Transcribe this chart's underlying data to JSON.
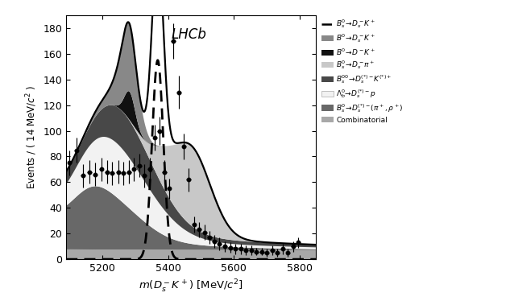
{
  "title": "LHCb",
  "xlabel": "$m(D_s^- K^+)$ [MeV/$c^2$]",
  "ylabel": "Events / ( 14 MeV/$c^2$ )",
  "xlim": [
    5090,
    5850
  ],
  "ylim": [
    0,
    190
  ],
  "yticks": [
    0,
    20,
    40,
    60,
    80,
    100,
    120,
    140,
    160,
    180
  ],
  "xticks": [
    5200,
    5400,
    5600,
    5800
  ],
  "data_x": [
    5100,
    5120,
    5140,
    5160,
    5178,
    5196,
    5214,
    5230,
    5248,
    5264,
    5280,
    5296,
    5312,
    5328,
    5344,
    5360,
    5374,
    5388,
    5402,
    5416,
    5432,
    5448,
    5462,
    5478,
    5494,
    5510,
    5526,
    5540,
    5556,
    5572,
    5588,
    5604,
    5620,
    5636,
    5652,
    5668,
    5684,
    5700,
    5716,
    5732,
    5748,
    5764,
    5780,
    5796
  ],
  "data_y": [
    75,
    85,
    65,
    68,
    66,
    70,
    68,
    67,
    68,
    67,
    68,
    70,
    73,
    65,
    70,
    95,
    100,
    68,
    55,
    170,
    130,
    88,
    62,
    27,
    23,
    21,
    17,
    14,
    12,
    10,
    9,
    8,
    8,
    7,
    7,
    6,
    6,
    5,
    7,
    5,
    8,
    5,
    10,
    13
  ],
  "data_yerr": [
    10,
    10,
    9,
    9,
    9,
    9,
    9,
    9,
    9,
    9,
    9,
    9,
    9,
    9,
    9,
    10,
    11,
    9,
    8,
    14,
    13,
    10,
    9,
    6,
    6,
    6,
    5,
    5,
    5,
    4,
    4,
    4,
    4,
    4,
    4,
    3,
    3,
    3,
    4,
    3,
    4,
    3,
    4,
    4
  ],
  "background_color": "#ffffff",
  "comb_color": "#a8a8a8",
  "pirho_color": "#686868",
  "lamb_color": "#f2f2f2",
  "Bs00_color": "#484848",
  "Dspi_color": "#c8c8c8",
  "B0DK_color": "#111111",
  "B0DsK_color": "#888888"
}
